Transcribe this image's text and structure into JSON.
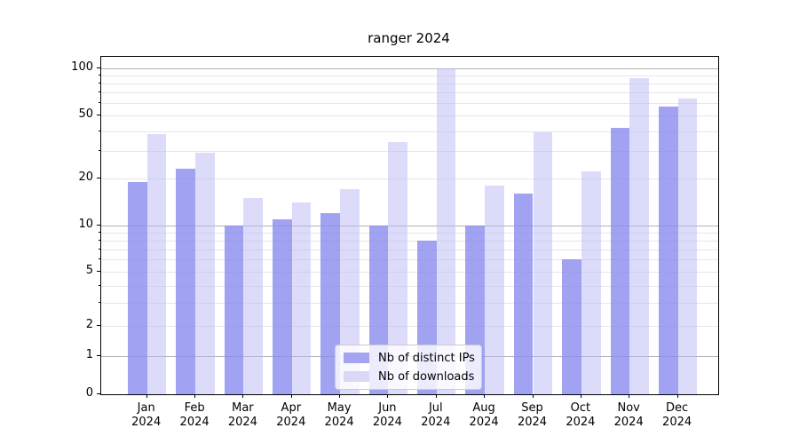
{
  "title": "ranger 2024",
  "legend": {
    "items": [
      {
        "label": "Nb of distinct IPs",
        "color": "#a4a4f1"
      },
      {
        "label": "Nb of downloads",
        "color": "#d9d9f7"
      }
    ],
    "position": "lower center"
  },
  "chart_data": {
    "type": "bar",
    "title": "ranger 2024",
    "categories": [
      "Jan 2024",
      "Feb 2024",
      "Mar 2024",
      "Apr 2024",
      "May 2024",
      "Jun 2024",
      "Jul 2024",
      "Aug 2024",
      "Sep 2024",
      "Oct 2024",
      "Nov 2024",
      "Dec 2024"
    ],
    "series": [
      {
        "name": "Nb of distinct IPs",
        "color": "#8b8bf0",
        "alpha": 0.8,
        "legend_color": "#a4a4f1",
        "values": [
          19,
          23,
          10,
          11,
          12,
          10,
          8,
          10,
          16,
          6,
          42,
          57
        ]
      },
      {
        "name": "Nb of downloads",
        "color": "#b9b9f5",
        "alpha": 0.5,
        "legend_color": "#d9d9f7",
        "values": [
          38,
          29,
          15,
          14,
          17,
          34,
          100,
          18,
          39,
          22,
          87,
          64
        ]
      }
    ],
    "xlabel": "",
    "ylabel": "",
    "yscale": "asinh (log-like, linear near 0)",
    "yscale_linear_width": 1.7,
    "ylim": [
      0,
      120
    ],
    "y_ticks": [
      0,
      1,
      2,
      5,
      10,
      20,
      50,
      100
    ],
    "y_major_gridlines": [
      1,
      10,
      100
    ],
    "y_minor_gridlines": [
      2,
      3,
      4,
      5,
      6,
      7,
      8,
      9,
      20,
      30,
      40,
      50,
      60,
      70,
      80,
      90
    ],
    "grid": "horizontal gridlines, major darker + minor lighter",
    "legend_position": "lower center"
  },
  "colors": {
    "major_grid": "#b3b3b3",
    "minor_grid": "#e6e6e6",
    "spine": "#000000",
    "background": "#ffffff"
  }
}
